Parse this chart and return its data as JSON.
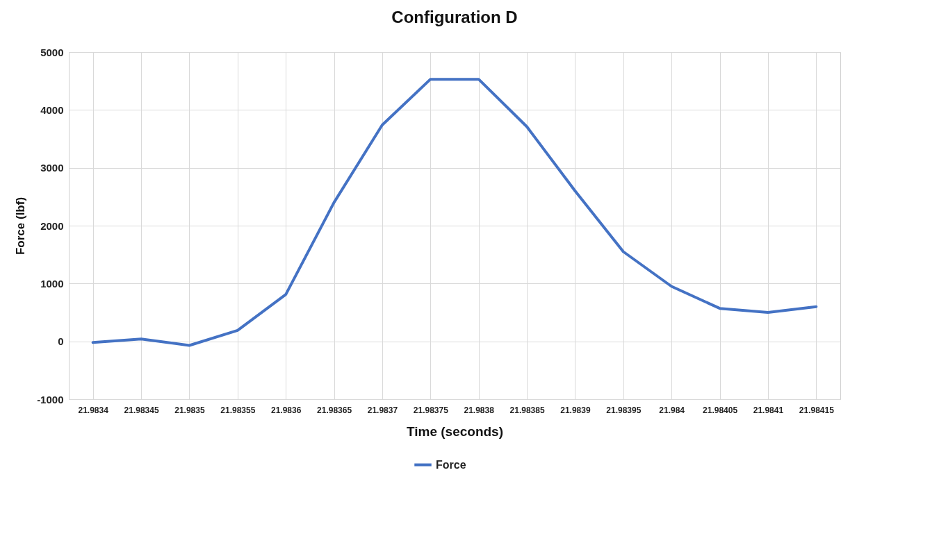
{
  "chart_data": {
    "type": "line",
    "title": "Configuration D",
    "xlabel": "Time (seconds)",
    "ylabel": "Force (lbf)",
    "categories": [
      "21.9834",
      "21.98345",
      "21.9835",
      "21.98355",
      "21.9836",
      "21.98365",
      "21.9837",
      "21.98375",
      "21.9838",
      "21.98385",
      "21.9839",
      "21.98395",
      "21.984",
      "21.98405",
      "21.9841",
      "21.98415"
    ],
    "series": [
      {
        "name": "Force",
        "color": "#4472c4",
        "values": [
          -20,
          40,
          -70,
          190,
          810,
          2400,
          3740,
          4530,
          4530,
          3710,
          2600,
          1550,
          950,
          570,
          500,
          600
        ]
      }
    ],
    "ylim": [
      -1000,
      5000
    ],
    "yticks": [
      -1000,
      0,
      1000,
      2000,
      3000,
      4000,
      5000
    ],
    "grid": true,
    "legend": "bottom",
    "marker": "none",
    "line_style": "solid"
  }
}
